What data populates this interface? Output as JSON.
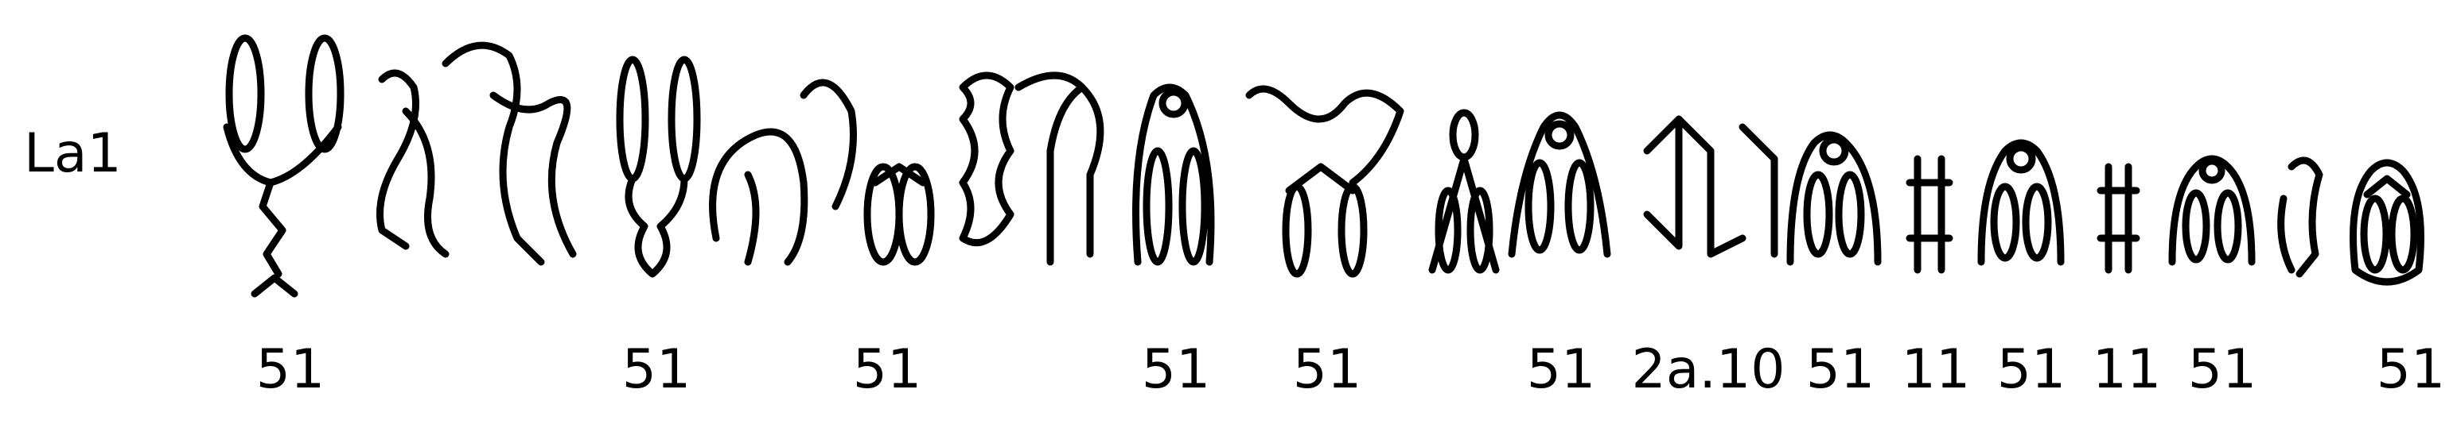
{
  "row_label": "La1",
  "glyph_numbers": [
    {
      "text": "51"
    },
    {
      "text": "51"
    },
    {
      "text": "51"
    },
    {
      "text": "51"
    },
    {
      "text": "51"
    },
    {
      "text": "51"
    },
    {
      "text": "2a.10"
    },
    {
      "text": "51"
    },
    {
      "text": "11"
    },
    {
      "text": "51"
    },
    {
      "text": "11"
    },
    {
      "text": "51"
    },
    {
      "text": "51"
    }
  ]
}
